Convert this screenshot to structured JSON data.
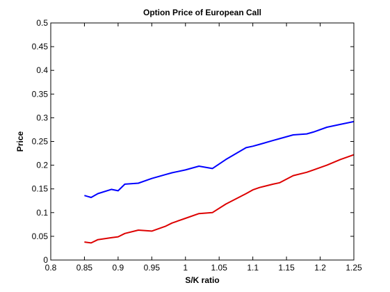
{
  "chart_data": {
    "type": "line",
    "title": "Option Price of European Call",
    "xlabel": "S/K ratio",
    "ylabel": "Price",
    "xlim": [
      0.8,
      1.25
    ],
    "ylim": [
      0,
      0.5
    ],
    "xticks": [
      "0.8",
      "0.85",
      "0.9",
      "0.95",
      "1",
      "1.05",
      "1.1",
      "1.15",
      "1.2",
      "1.25"
    ],
    "yticks": [
      "0",
      "0.05",
      "0.1",
      "0.15",
      "0.2",
      "0.25",
      "0.3",
      "0.35",
      "0.4",
      "0.45",
      "0.5"
    ],
    "grid": false,
    "legend": false,
    "series": [
      {
        "color": "#0000ff",
        "x": [
          0.85,
          0.86,
          0.87,
          0.89,
          0.9,
          0.91,
          0.93,
          0.95,
          0.97,
          0.98,
          1.0,
          1.02,
          1.04,
          1.06,
          1.09,
          1.1,
          1.11,
          1.13,
          1.14,
          1.16,
          1.18,
          1.19,
          1.21,
          1.23,
          1.25
        ],
        "y": [
          0.136,
          0.132,
          0.14,
          0.149,
          0.146,
          0.16,
          0.162,
          0.172,
          0.18,
          0.184,
          0.19,
          0.198,
          0.193,
          0.212,
          0.237,
          0.24,
          0.244,
          0.252,
          0.256,
          0.264,
          0.266,
          0.27,
          0.28,
          0.286,
          0.292
        ]
      },
      {
        "color": "#dd0000",
        "x": [
          0.85,
          0.86,
          0.87,
          0.89,
          0.9,
          0.91,
          0.93,
          0.95,
          0.97,
          0.98,
          1.0,
          1.02,
          1.04,
          1.06,
          1.09,
          1.1,
          1.11,
          1.13,
          1.14,
          1.16,
          1.18,
          1.19,
          1.21,
          1.23,
          1.25
        ],
        "y": [
          0.038,
          0.036,
          0.043,
          0.047,
          0.049,
          0.056,
          0.063,
          0.061,
          0.071,
          0.078,
          0.088,
          0.098,
          0.1,
          0.118,
          0.14,
          0.148,
          0.153,
          0.16,
          0.163,
          0.178,
          0.185,
          0.19,
          0.2,
          0.212,
          0.222
        ]
      }
    ]
  }
}
